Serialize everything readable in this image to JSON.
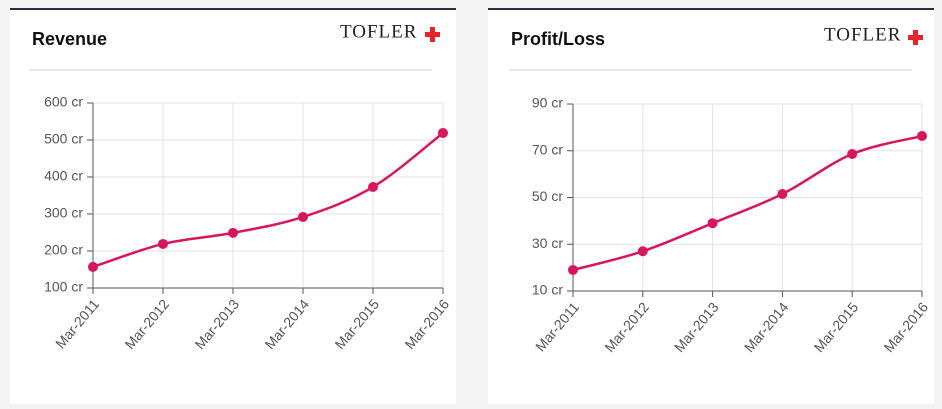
{
  "chart_data": [
    {
      "type": "line",
      "title": "Revenue",
      "brand": "TOFLER",
      "categories": [
        "Mar-2011",
        "Mar-2012",
        "Mar-2013",
        "Mar-2014",
        "Mar-2015",
        "Mar-2016"
      ],
      "values": [
        157,
        219,
        249,
        292,
        373,
        519
      ],
      "color": "#d6165f",
      "ylim": [
        100,
        600
      ],
      "yticks": [
        {
          "value": 100,
          "label": "100 cr"
        },
        {
          "value": 200,
          "label": "200 cr"
        },
        {
          "value": 300,
          "label": "300 cr"
        },
        {
          "value": 400,
          "label": "400 cr"
        },
        {
          "value": 500,
          "label": "500 cr"
        },
        {
          "value": 600,
          "label": "600 cr"
        }
      ],
      "grid": true
    },
    {
      "type": "line",
      "title": "Profit/Loss",
      "brand": "TOFLER",
      "categories": [
        "Mar-2011",
        "Mar-2012",
        "Mar-2013",
        "Mar-2014",
        "Mar-2015",
        "Mar-2016"
      ],
      "values": [
        19,
        27,
        39,
        51.5,
        68.6,
        76.3
      ],
      "color": "#d6165f",
      "ylim": [
        10,
        90
      ],
      "yticks": [
        {
          "value": 10,
          "label": "10 cr"
        },
        {
          "value": 30,
          "label": "30 cr"
        },
        {
          "value": 50,
          "label": "50 cr"
        },
        {
          "value": 70,
          "label": "70 cr"
        },
        {
          "value": 90,
          "label": "90 cr"
        }
      ],
      "grid": true
    }
  ]
}
